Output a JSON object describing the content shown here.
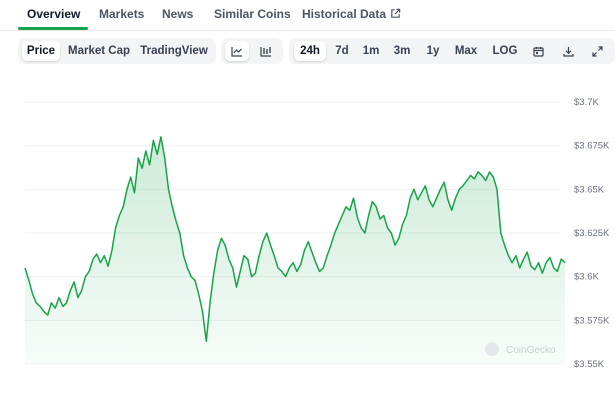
{
  "tabs": {
    "overview": "Overview",
    "markets": "Markets",
    "news": "News",
    "similar_coins": "Similar Coins",
    "historical_data": "Historical Data"
  },
  "toolbar": {
    "price": "Price",
    "market_cap": "Market Cap",
    "tradingview": "TradingView",
    "range_24h": "24h",
    "range_7d": "7d",
    "range_1m": "1m",
    "range_3m": "3m",
    "range_1y": "1y",
    "range_max": "Max",
    "log": "LOG"
  },
  "icons": [
    "line-chart-icon",
    "candlestick-chart-icon",
    "calendar-icon",
    "download-icon",
    "expand-icon",
    "external-link-icon"
  ],
  "colors": {
    "accent": "#16a34a",
    "line": "#16a34a",
    "fill": "#dcfce7"
  },
  "watermark": "CoinGecko",
  "chart_data": {
    "type": "area",
    "y_tick_labels": [
      "$3.7K",
      "$3.675K",
      "$3.65K",
      "$3.625K",
      "$3.6K",
      "$3.575K",
      "$3.55K"
    ],
    "ylim": [
      3550,
      3700
    ],
    "grid": true,
    "y_axis_side": "right",
    "series": [
      {
        "values": [
          3605,
          3598,
          3590,
          3585,
          3583,
          3580,
          3578,
          3585,
          3582,
          3588,
          3583,
          3585,
          3592,
          3597,
          3588,
          3592,
          3600,
          3603,
          3610,
          3613,
          3608,
          3612,
          3606,
          3615,
          3628,
          3635,
          3640,
          3650,
          3657,
          3648,
          3668,
          3662,
          3672,
          3664,
          3678,
          3670,
          3680,
          3668,
          3650,
          3640,
          3632,
          3625,
          3612,
          3605,
          3600,
          3598,
          3590,
          3580,
          3563,
          3585,
          3602,
          3615,
          3622,
          3618,
          3610,
          3605,
          3594,
          3603,
          3612,
          3610,
          3600,
          3602,
          3612,
          3620,
          3625,
          3618,
          3612,
          3605,
          3603,
          3600,
          3605,
          3608,
          3603,
          3607,
          3615,
          3620,
          3614,
          3608,
          3603,
          3605,
          3612,
          3618,
          3625,
          3630,
          3635,
          3640,
          3638,
          3645,
          3634,
          3628,
          3625,
          3635,
          3643,
          3640,
          3633,
          3635,
          3628,
          3625,
          3618,
          3622,
          3630,
          3635,
          3645,
          3650,
          3644,
          3648,
          3652,
          3644,
          3640,
          3645,
          3650,
          3654,
          3644,
          3638,
          3645,
          3650,
          3652,
          3655,
          3658,
          3656,
          3660,
          3658,
          3655,
          3660,
          3657,
          3650,
          3625,
          3618,
          3612,
          3608,
          3612,
          3605,
          3610,
          3614,
          3606,
          3604,
          3608,
          3602,
          3608,
          3611,
          3605,
          3603,
          3610,
          3608
        ]
      }
    ]
  }
}
